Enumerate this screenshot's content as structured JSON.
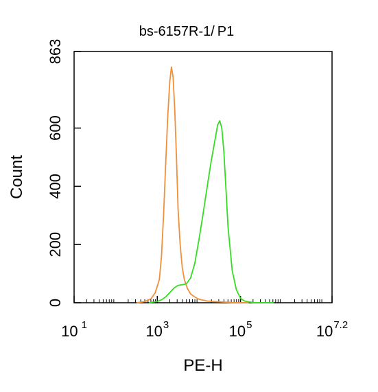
{
  "chart_data": {
    "type": "line",
    "title": {
      "prefix": "bs-6157R-1/",
      "gate": "P1",
      "gate_color": "#00cc00"
    },
    "xlabel": "PE-H",
    "ylabel": "Count",
    "x_scale": "log10",
    "xlim": [
      1,
      7.2
    ],
    "ylim": [
      0,
      863
    ],
    "x_ticks": [
      {
        "base": "10",
        "exp": "1",
        "value": 1
      },
      {
        "base": "10",
        "exp": "3",
        "value": 3
      },
      {
        "base": "10",
        "exp": "5",
        "value": 5
      },
      {
        "base": "10",
        "exp": "7.2",
        "value": 7.2
      }
    ],
    "y_ticks": [
      {
        "label": "0",
        "value": 0
      },
      {
        "label": "200",
        "value": 200
      },
      {
        "label": "400",
        "value": 400
      },
      {
        "label": "600",
        "value": 600
      },
      {
        "label": "863",
        "value": 863
      }
    ],
    "series": [
      {
        "color": "#f0903a",
        "x": [
          2.5,
          2.7,
          2.85,
          2.95,
          3.05,
          3.1,
          3.15,
          3.2,
          3.25,
          3.3,
          3.34,
          3.38,
          3.42,
          3.46,
          3.5,
          3.55,
          3.6,
          3.65,
          3.72,
          3.8,
          3.9,
          4.0,
          4.2,
          4.5,
          4.8,
          5.2
        ],
        "values": [
          0,
          4,
          14,
          35,
          80,
          160,
          300,
          470,
          640,
          760,
          810,
          775,
          660,
          500,
          320,
          200,
          120,
          80,
          50,
          30,
          20,
          12,
          6,
          3,
          1,
          0
        ]
      },
      {
        "color": "#33dd22",
        "x": [
          2.8,
          3.0,
          3.1,
          3.2,
          3.3,
          3.4,
          3.5,
          3.6,
          3.7,
          3.8,
          3.9,
          4.0,
          4.1,
          4.2,
          4.3,
          4.4,
          4.45,
          4.5,
          4.55,
          4.6,
          4.65,
          4.7,
          4.8,
          4.9,
          5.0,
          5.1,
          5.2,
          5.3,
          5.5,
          5.8
        ],
        "values": [
          0,
          5,
          10,
          20,
          35,
          50,
          60,
          62,
          65,
          85,
          135,
          215,
          305,
          400,
          490,
          570,
          610,
          625,
          600,
          520,
          390,
          260,
          110,
          45,
          15,
          6,
          3,
          1,
          0,
          0
        ]
      }
    ],
    "grid": false,
    "legend": "none"
  }
}
